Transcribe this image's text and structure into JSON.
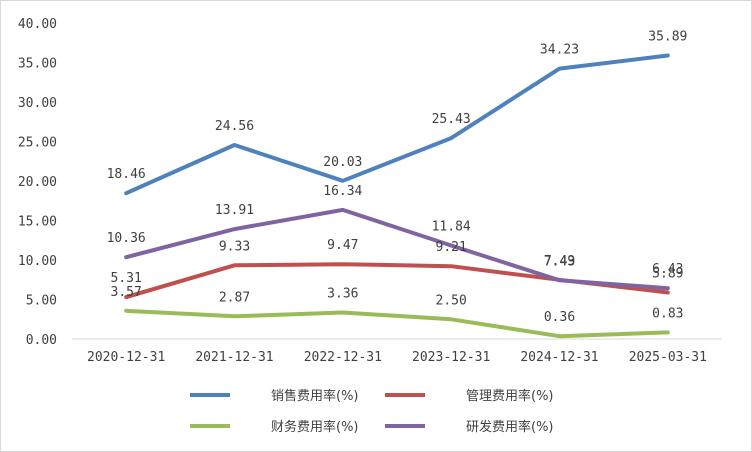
{
  "chart_data": {
    "type": "line",
    "title": "",
    "xlabel": "",
    "ylabel": "",
    "categories": [
      "2020-12-31",
      "2021-12-31",
      "2022-12-31",
      "2023-12-31",
      "2024-12-31",
      "2025-03-31"
    ],
    "ylim": [
      0,
      40
    ],
    "yticks": [
      "0.00",
      "5.00",
      "10.00",
      "15.00",
      "20.00",
      "25.00",
      "30.00",
      "35.00",
      "40.00"
    ],
    "grid": false,
    "legend_position": "bottom",
    "series": [
      {
        "name": "销售费用率(%)",
        "color": "#4f81bd",
        "values": [
          18.46,
          24.56,
          20.03,
          25.43,
          34.23,
          35.89
        ],
        "labels": [
          "18.46",
          "24.56",
          "20.03",
          "25.43",
          "34.23",
          "35.89"
        ]
      },
      {
        "name": "管理费用率(%)",
        "color": "#c0504d",
        "values": [
          5.31,
          9.33,
          9.47,
          9.21,
          7.49,
          5.89
        ],
        "labels": [
          "5.31",
          "9.33",
          "9.47",
          "9.21",
          "7.49",
          "5.89"
        ]
      },
      {
        "name": "财务费用率(%)",
        "color": "#9bbb59",
        "values": [
          3.57,
          2.87,
          3.36,
          2.5,
          0.36,
          0.83
        ],
        "labels": [
          "3.57",
          "2.87",
          "3.36",
          "2.50",
          "0.36",
          "0.83"
        ]
      },
      {
        "name": "研发费用率(%)",
        "color": "#8064a2",
        "values": [
          10.36,
          13.91,
          16.34,
          11.84,
          7.43,
          6.43
        ],
        "labels": [
          "10.36",
          "13.91",
          "16.34",
          "11.84",
          "7.43",
          "6.43"
        ]
      }
    ]
  }
}
